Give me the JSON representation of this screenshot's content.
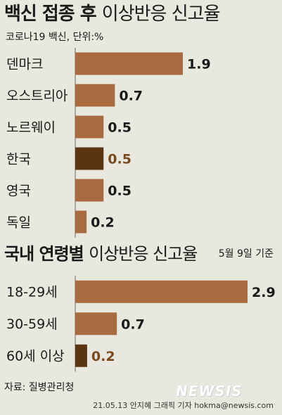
{
  "title_main": "백신 접종 후",
  "title_suffix": "이상반응 신고율",
  "subtitle": "코로나19 백신, 단위:%",
  "section_title_main": "국내 연령별",
  "section_title_suffix": "이상반응 신고율",
  "section_date": "5월 9일 기준",
  "source": "자료: 질병관리청",
  "logo": "NEWSIS",
  "credit": "21.05.13 안지혜 그래픽 기자 hokma@newsis.com",
  "colors": {
    "bar": "#a86a3e",
    "highlight_bar": "#5b3512",
    "highlight_text": "#7a4a1f",
    "axis": "#666666"
  },
  "chart_data": [
    {
      "type": "bar",
      "orientation": "horizontal",
      "categories": [
        "덴마크",
        "오스트리아",
        "노르웨이",
        "한국",
        "영국",
        "독일"
      ],
      "values": [
        1.9,
        0.7,
        0.5,
        0.5,
        0.5,
        0.2
      ],
      "value_labels": [
        "1.9",
        "0.7",
        "0.5",
        "0.5",
        "0.5",
        "0.2"
      ],
      "highlight": [
        "한국"
      ],
      "xlim": [
        0,
        1.9
      ]
    },
    {
      "type": "bar",
      "orientation": "horizontal",
      "categories": [
        "18-29세",
        "30-59세",
        "60세 이상"
      ],
      "values": [
        2.9,
        0.7,
        0.2
      ],
      "value_labels": [
        "2.9",
        "0.7",
        "0.2"
      ],
      "highlight": [
        "60세 이상"
      ],
      "xlim": [
        0,
        2.9
      ]
    }
  ]
}
